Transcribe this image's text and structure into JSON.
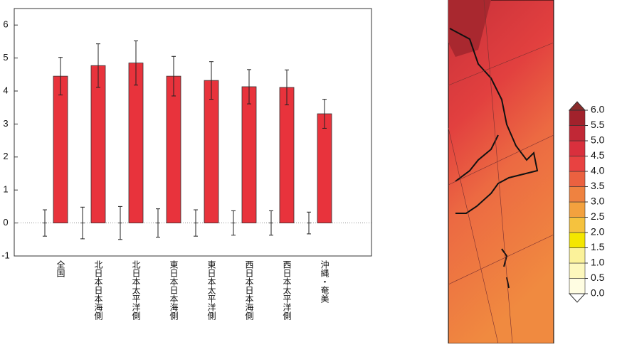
{
  "chart_data": [
    {
      "type": "bar",
      "categories": [
        "全国",
        "北日本日本海側",
        "北日本太平洋側",
        "東日本日本海側",
        "東日本太平洋側",
        "西日本日本海側",
        "西日本太平洋側",
        "沖縄・奄美"
      ],
      "series": [
        {
          "color": "#444444",
          "values": [
            0,
            0,
            0,
            0,
            0,
            0,
            0,
            0
          ],
          "errors": [
            0.4,
            0.48,
            0.5,
            0.43,
            0.4,
            0.37,
            0.37,
            0.33
          ]
        },
        {
          "color": "#e8333c",
          "values": [
            4.45,
            4.77,
            4.85,
            4.45,
            4.32,
            4.13,
            4.11,
            3.31
          ],
          "errors": [
            0.57,
            0.66,
            0.67,
            0.6,
            0.57,
            0.52,
            0.53,
            0.44
          ]
        }
      ],
      "ylim": [
        -1,
        6.5
      ],
      "yticks": [
        -1,
        0,
        1,
        2,
        3,
        4,
        5,
        6
      ]
    },
    {
      "type": "colorbar",
      "ylim": [
        0,
        6
      ],
      "yticks": [
        {
          "value": 0,
          "label": "0.0"
        },
        {
          "value": 0.5,
          "label": "0.5"
        },
        {
          "value": 1,
          "label": "1.0"
        },
        {
          "value": 1.5,
          "label": "1.5"
        },
        {
          "value": 2,
          "label": "2.0"
        },
        {
          "value": 2.5,
          "label": "2.5"
        },
        {
          "value": 3,
          "label": "3.0"
        },
        {
          "value": 3.5,
          "label": "3.5"
        },
        {
          "value": 4,
          "label": "4.0"
        },
        {
          "value": 4.5,
          "label": "4.5"
        },
        {
          "value": 5,
          "label": "5.0"
        },
        {
          "value": 5.5,
          "label": "5.5"
        },
        {
          "value": 6,
          "label": "6.0"
        }
      ],
      "colors": [
        "#fffde2",
        "#fdf8bd",
        "#fbf29a",
        "#f4e600",
        "#f5c23e",
        "#f3a13e",
        "#ef8240",
        "#eb6140",
        "#e84241",
        "#d9303d",
        "#c12836",
        "#a2222c"
      ],
      "under_color": "#ffffff",
      "over_color": "#8a2b2b"
    }
  ]
}
